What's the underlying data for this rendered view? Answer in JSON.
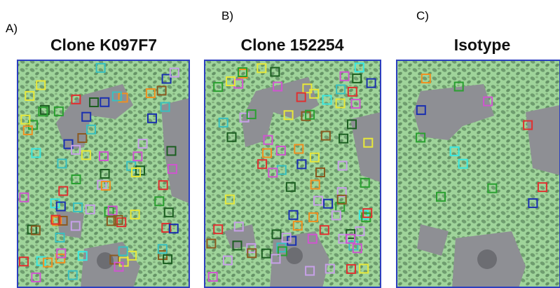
{
  "panels": [
    {
      "label": "A)",
      "title": "Clone K097F7"
    },
    {
      "label": "B)",
      "title": "Clone 152254"
    },
    {
      "label": "C)",
      "title": "Isotype"
    }
  ]
}
